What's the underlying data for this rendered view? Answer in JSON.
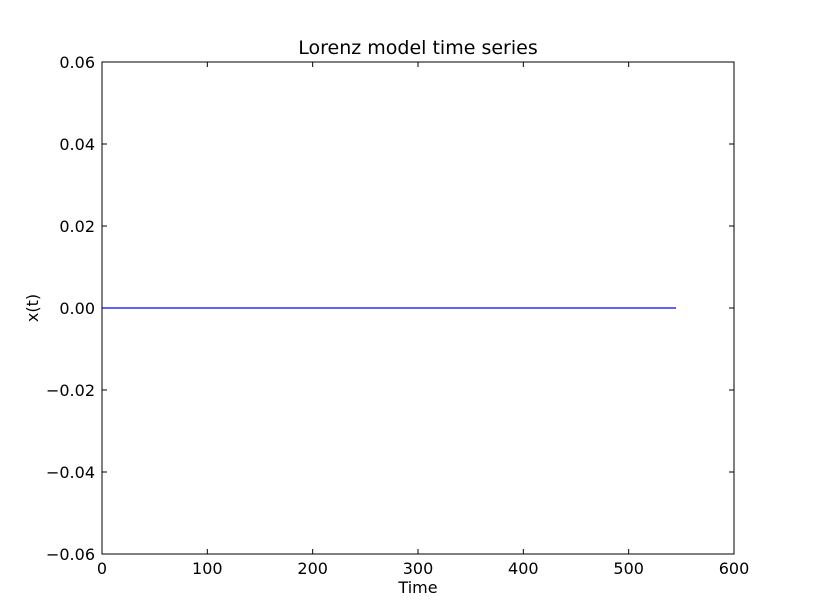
{
  "chart_data": {
    "type": "line",
    "title": "Lorenz model time series",
    "xlabel": "Time",
    "ylabel": "x(t)",
    "xlim": [
      0,
      600
    ],
    "ylim": [
      -0.06,
      0.06
    ],
    "xticks": [
      0,
      100,
      200,
      300,
      400,
      500,
      600
    ],
    "xtick_labels": [
      "0",
      "100",
      "200",
      "300",
      "400",
      "500",
      "600"
    ],
    "yticks": [
      -0.06,
      -0.04,
      -0.02,
      0.0,
      0.02,
      0.04,
      0.06
    ],
    "ytick_labels": [
      "−0.06",
      "−0.04",
      "−0.02",
      "0.00",
      "0.02",
      "0.04",
      "0.06"
    ],
    "grid": false,
    "series": [
      {
        "color": "#0000ff",
        "x": [
          0,
          545
        ],
        "y": [
          0.0,
          0.0
        ]
      }
    ]
  }
}
